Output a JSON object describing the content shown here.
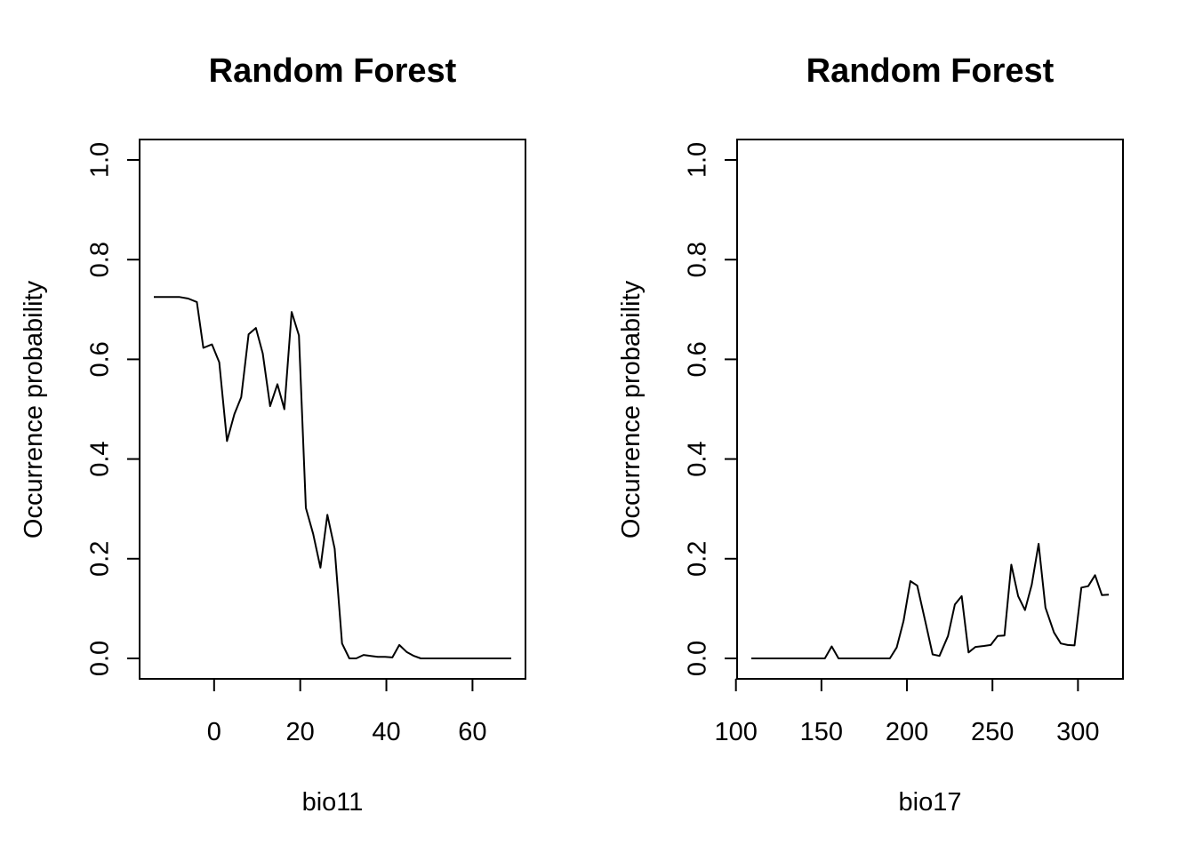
{
  "chart_data": [
    {
      "type": "line",
      "title": "Random Forest",
      "xlabel": "bio11",
      "ylabel": "Occurrence probability",
      "xlim": [
        -14,
        69
      ],
      "ylim": [
        0,
        1
      ],
      "xticks": [
        0,
        20,
        40,
        60
      ],
      "yticks": [
        0.0,
        0.2,
        0.4,
        0.6,
        0.8,
        1.0
      ],
      "ytick_labels": [
        "0.0",
        "0.2",
        "0.4",
        "0.6",
        "0.8",
        "1.0"
      ],
      "grid": false,
      "series": [
        {
          "x": [
            -14,
            -12,
            -10,
            -8,
            -6,
            -4,
            -2.5,
            -0.5,
            1.2,
            3,
            4.7,
            6.3,
            8,
            9.7,
            11.3,
            13,
            14.7,
            16.3,
            18,
            19.7,
            21.3,
            23,
            24.7,
            26.3,
            28,
            29.7,
            31.4,
            33,
            34.7,
            36.4,
            38,
            39.7,
            41.4,
            43,
            44.7,
            46.4,
            48,
            50,
            55,
            60,
            65,
            69
          ],
          "y": [
            0.725,
            0.725,
            0.725,
            0.725,
            0.722,
            0.715,
            0.623,
            0.63,
            0.594,
            0.436,
            0.49,
            0.524,
            0.65,
            0.663,
            0.612,
            0.506,
            0.55,
            0.5,
            0.695,
            0.648,
            0.302,
            0.25,
            0.182,
            0.288,
            0.22,
            0.03,
            0.0,
            0.0,
            0.007,
            0.005,
            0.003,
            0.003,
            0.002,
            0.027,
            0.013,
            0.005,
            0.0,
            0.0,
            0.0,
            0.0,
            0.0,
            0.0
          ]
        }
      ]
    },
    {
      "type": "line",
      "title": "Random Forest",
      "xlabel": "bio17",
      "ylabel": "Occurrence probability",
      "xlim": [
        109,
        318
      ],
      "ylim": [
        0,
        1
      ],
      "xticks": [
        100,
        150,
        200,
        250,
        300
      ],
      "yticks": [
        0.0,
        0.2,
        0.4,
        0.6,
        0.8,
        1.0
      ],
      "ytick_labels": [
        "0.0",
        "0.2",
        "0.4",
        "0.6",
        "0.8",
        "1.0"
      ],
      "grid": false,
      "series": [
        {
          "x": [
            109,
            120,
            130,
            140,
            150,
            152,
            156,
            160,
            170,
            180,
            186,
            190,
            194,
            198,
            202,
            206,
            211,
            215,
            219,
            224,
            228,
            232,
            236,
            240,
            245,
            249,
            253,
            257,
            261,
            265,
            269,
            273,
            277,
            281,
            286,
            290,
            294,
            298,
            302,
            306,
            310,
            314,
            318
          ],
          "y": [
            0.0,
            0.0,
            0.0,
            0.0,
            0.0,
            0.0,
            0.024,
            0.0,
            0.0,
            0.0,
            0.0,
            0.0,
            0.022,
            0.075,
            0.155,
            0.146,
            0.07,
            0.008,
            0.005,
            0.045,
            0.108,
            0.125,
            0.012,
            0.023,
            0.025,
            0.027,
            0.045,
            0.046,
            0.188,
            0.125,
            0.097,
            0.148,
            0.23,
            0.102,
            0.052,
            0.03,
            0.027,
            0.026,
            0.142,
            0.145,
            0.167,
            0.127,
            0.128
          ]
        }
      ]
    }
  ]
}
